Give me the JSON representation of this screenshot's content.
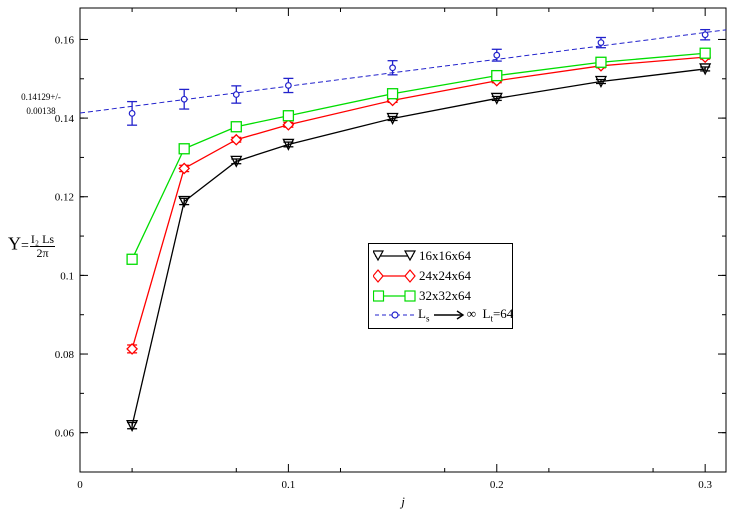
{
  "chart_data": {
    "type": "line",
    "xlabel": "j",
    "ylim": [
      0.05,
      0.168
    ],
    "xlim": [
      0,
      0.31
    ],
    "xticks": [
      0,
      0.1,
      0.2,
      0.3
    ],
    "xtick_labels": [
      "0",
      "0.1",
      "0.2",
      "0.3"
    ],
    "yticks": [
      0.06,
      0.08,
      0.1,
      0.12,
      0.14,
      0.16
    ],
    "ytick_labels": [
      "0.06",
      "0.08",
      "0.1",
      "0.12",
      "0.14",
      "0.16"
    ],
    "intercept_annotation": [
      "0.14129+/-",
      "0.00138"
    ],
    "ylabel": {
      "symbol": "Υ",
      "equals": "=",
      "numerator": "I₂ Ls",
      "denominator": "2π"
    },
    "legend_position": "center-right",
    "series": [
      {
        "name": "16x16x64",
        "color": "#000000",
        "marker": "triangle-down",
        "x": [
          0.025,
          0.05,
          0.075,
          0.1,
          0.15,
          0.2,
          0.25,
          0.3
        ],
        "y": [
          0.0618,
          0.1188,
          0.129,
          0.1333,
          0.1399,
          0.145,
          0.1493,
          0.1525
        ],
        "err": [
          0.0008,
          0.0008,
          0.0006,
          0.0006,
          0.0005,
          0.0005,
          0.0005,
          0.0005
        ]
      },
      {
        "name": "24x24x64",
        "color": "#ff0000",
        "marker": "diamond",
        "x": [
          0.025,
          0.05,
          0.075,
          0.1,
          0.15,
          0.2,
          0.25,
          0.3
        ],
        "y": [
          0.0813,
          0.1272,
          0.1345,
          0.1383,
          0.1445,
          0.1495,
          0.1533,
          0.1555
        ],
        "err": [
          0.001,
          0.0008,
          0.0006,
          0.0006,
          0.0005,
          0.0005,
          0.0005,
          0.0005
        ]
      },
      {
        "name": "32x32x64",
        "color": "#00dd00",
        "marker": "square",
        "x": [
          0.025,
          0.05,
          0.075,
          0.1,
          0.15,
          0.2,
          0.25,
          0.3
        ],
        "y": [
          0.1041,
          0.1322,
          0.1378,
          0.1406,
          0.1462,
          0.1508,
          0.1542,
          0.1565
        ],
        "err": [
          0.0006,
          0.0006,
          0.0006,
          0.0006,
          0.0005,
          0.0005,
          0.0005,
          0.0005
        ]
      },
      {
        "name": "Ls → ∞  Lt=64",
        "color": "#2222cc",
        "marker": "circle",
        "x": [
          0.025,
          0.05,
          0.075,
          0.1,
          0.15,
          0.2,
          0.25,
          0.3
        ],
        "y": [
          0.1412,
          0.1448,
          0.146,
          0.1483,
          0.1528,
          0.156,
          0.1592,
          0.1612
        ],
        "err": [
          0.003,
          0.0025,
          0.0022,
          0.0018,
          0.0018,
          0.0015,
          0.0013,
          0.0013
        ],
        "fit": {
          "x": [
            0,
            0.31
          ],
          "y": [
            0.14129,
            0.16245
          ]
        }
      }
    ],
    "legend": {
      "label1": "16x16x64",
      "label2": "24x24x64",
      "label3": "32x32x64",
      "label4_a": "L",
      "label4_a_sub": "s",
      "label4_b": "L",
      "label4_b_sub": "t",
      "label4_c": "=64"
    }
  }
}
